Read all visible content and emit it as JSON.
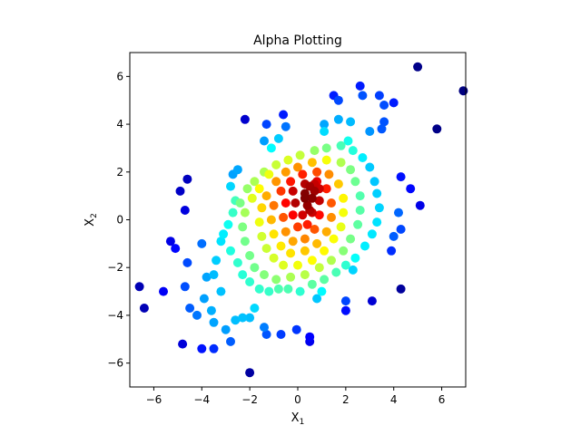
{
  "chart_data": {
    "type": "scatter",
    "title": "Alpha Plotting",
    "xlabel": {
      "base": "X",
      "sub": "1"
    },
    "ylabel": {
      "base": "X",
      "sub": "2"
    },
    "xlim": [
      -7,
      7
    ],
    "ylim": [
      -7,
      7
    ],
    "xticks": [
      -6,
      -4,
      -2,
      0,
      2,
      4,
      6
    ],
    "yticks": [
      -6,
      -4,
      -2,
      0,
      2,
      4,
      6
    ],
    "grid": false,
    "colormap": "jet",
    "color_meaning": "point density (red = dense center, dark blue = sparse outliers)",
    "points": [
      [
        -6.6,
        -2.8
      ],
      [
        -6.4,
        -3.7
      ],
      [
        -5.6,
        -3.0
      ],
      [
        -5.3,
        -0.9
      ],
      [
        -5.1,
        -1.2
      ],
      [
        -4.9,
        1.2
      ],
      [
        -4.7,
        0.4
      ],
      [
        -4.6,
        1.7
      ],
      [
        -4.6,
        -1.8
      ],
      [
        -4.7,
        -2.8
      ],
      [
        -4.8,
        -5.2
      ],
      [
        -4.5,
        -3.7
      ],
      [
        -4.2,
        -4.0
      ],
      [
        -4.0,
        -5.4
      ],
      [
        -3.5,
        -5.4
      ],
      [
        -4.0,
        -1.0
      ],
      [
        -3.8,
        -2.4
      ],
      [
        -3.9,
        -3.3
      ],
      [
        -3.6,
        -3.8
      ],
      [
        -3.5,
        -4.3
      ],
      [
        -3.2,
        -3.0
      ],
      [
        -3.0,
        -4.6
      ],
      [
        -2.8,
        -5.1
      ],
      [
        -2.6,
        -4.2
      ],
      [
        -2.3,
        -4.1
      ],
      [
        -2.0,
        -4.1
      ],
      [
        -1.8,
        -3.7
      ],
      [
        -1.4,
        -4.5
      ],
      [
        -1.3,
        -4.8
      ],
      [
        -0.7,
        -4.8
      ],
      [
        -0.05,
        -4.6
      ],
      [
        0.5,
        -4.9
      ],
      [
        0.5,
        -5.1
      ],
      [
        -2.0,
        -6.4
      ],
      [
        -2.2,
        4.2
      ],
      [
        -1.3,
        4.0
      ],
      [
        -1.4,
        3.3
      ],
      [
        -0.6,
        4.4
      ],
      [
        -0.5,
        3.9
      ],
      [
        -0.8,
        3.4
      ],
      [
        -1.1,
        3.0
      ],
      [
        -2.5,
        2.1
      ],
      [
        -2.7,
        1.9
      ],
      [
        -2.8,
        1.4
      ],
      [
        -2.6,
        0.8
      ],
      [
        -3.2,
        -0.9
      ],
      [
        -3.4,
        -1.7
      ],
      [
        -3.5,
        -2.3
      ],
      [
        1.5,
        5.2
      ],
      [
        1.7,
        5.0
      ],
      [
        2.6,
        5.6
      ],
      [
        2.7,
        5.2
      ],
      [
        3.4,
        5.2
      ],
      [
        3.6,
        4.8
      ],
      [
        4.0,
        4.9
      ],
      [
        5.0,
        6.4
      ],
      [
        6.9,
        5.4
      ],
      [
        5.8,
        3.8
      ],
      [
        4.7,
        1.3
      ],
      [
        5.1,
        0.6
      ],
      [
        4.3,
        1.8
      ],
      [
        4.2,
        0.3
      ],
      [
        4.3,
        -0.4
      ],
      [
        4.0,
        -0.7
      ],
      [
        3.9,
        -1.3
      ],
      [
        4.3,
        -2.9
      ],
      [
        3.1,
        -3.4
      ],
      [
        2.0,
        -3.4
      ],
      [
        2.0,
        -3.8
      ],
      [
        1.0,
        -3.0
      ],
      [
        0.8,
        -3.3
      ],
      [
        2.3,
        -2.1
      ],
      [
        3.6,
        4.1
      ],
      [
        3.5,
        3.8
      ],
      [
        3.0,
        3.7
      ],
      [
        2.2,
        4.1
      ],
      [
        1.7,
        4.2
      ],
      [
        1.1,
        4.0
      ],
      [
        1.1,
        3.7
      ],
      [
        2.1,
        3.3
      ],
      [
        -1.4,
        2.0
      ],
      [
        -1.8,
        1.6
      ],
      [
        -2.1,
        1.3
      ],
      [
        -2.4,
        0.7
      ],
      [
        -2.7,
        0.3
      ],
      [
        -2.9,
        -0.2
      ],
      [
        -3.1,
        -0.6
      ],
      [
        -2.8,
        -1.3
      ],
      [
        -2.5,
        -1.8
      ],
      [
        -2.3,
        -2.3
      ],
      [
        -2.0,
        -2.6
      ],
      [
        -1.6,
        -2.9
      ],
      [
        -1.2,
        -3.0
      ],
      [
        -0.8,
        -2.9
      ],
      [
        -0.4,
        -2.9
      ],
      [
        0.1,
        -3.0
      ],
      [
        0.6,
        -2.7
      ],
      [
        1.1,
        -2.5
      ],
      [
        1.6,
        -2.2
      ],
      [
        2.0,
        -1.9
      ],
      [
        2.4,
        -1.6
      ],
      [
        2.8,
        -1.1
      ],
      [
        3.1,
        -0.6
      ],
      [
        3.3,
        -0.1
      ],
      [
        3.4,
        0.5
      ],
      [
        3.3,
        1.1
      ],
      [
        3.2,
        1.6
      ],
      [
        3.0,
        2.2
      ],
      [
        2.7,
        2.6
      ],
      [
        2.3,
        2.9
      ],
      [
        1.8,
        3.1
      ],
      [
        1.2,
        3.0
      ],
      [
        0.7,
        2.9
      ],
      [
        0.1,
        2.7
      ],
      [
        -0.4,
        2.5
      ],
      [
        -0.9,
        2.3
      ],
      [
        -1.2,
        1.9
      ],
      [
        -1.6,
        1.3
      ],
      [
        -1.9,
        0.9
      ],
      [
        -2.2,
        0.3
      ],
      [
        -2.3,
        -0.3
      ],
      [
        -2.2,
        -0.9
      ],
      [
        -2.0,
        -1.5
      ],
      [
        -1.8,
        -2.0
      ],
      [
        -1.4,
        -2.3
      ],
      [
        -0.9,
        -2.5
      ],
      [
        -0.3,
        -2.4
      ],
      [
        0.3,
        -2.3
      ],
      [
        0.9,
        -2.0
      ],
      [
        1.4,
        -1.7
      ],
      [
        1.9,
        -1.3
      ],
      [
        2.2,
        -0.8
      ],
      [
        2.5,
        -0.2
      ],
      [
        2.6,
        0.4
      ],
      [
        2.6,
        1.0
      ],
      [
        2.4,
        1.6
      ],
      [
        2.2,
        2.1
      ],
      [
        1.8,
        2.4
      ],
      [
        1.2,
        2.5
      ],
      [
        0.6,
        2.4
      ],
      [
        0.0,
        2.2
      ],
      [
        -0.5,
        2.0
      ],
      [
        -0.9,
        1.6
      ],
      [
        -1.3,
        1.0
      ],
      [
        -1.5,
        0.5
      ],
      [
        -1.6,
        -0.1
      ],
      [
        -1.5,
        -0.7
      ],
      [
        -1.3,
        -1.2
      ],
      [
        -1.0,
        -1.6
      ],
      [
        -0.6,
        -1.9
      ],
      [
        0.0,
        -1.9
      ],
      [
        0.6,
        -1.7
      ],
      [
        1.1,
        -1.3
      ],
      [
        1.5,
        -0.8
      ],
      [
        1.8,
        -0.3
      ],
      [
        1.9,
        0.3
      ],
      [
        1.9,
        0.9
      ],
      [
        1.7,
        1.5
      ],
      [
        1.3,
        1.9
      ],
      [
        0.8,
        2.0
      ],
      [
        0.2,
        1.9
      ],
      [
        -0.3,
        1.6
      ],
      [
        -0.7,
        1.2
      ],
      [
        -1.0,
        0.6
      ],
      [
        -1.1,
        0.0
      ],
      [
        -1.0,
        -0.6
      ],
      [
        -0.7,
        -1.1
      ],
      [
        -0.3,
        -1.4
      ],
      [
        0.3,
        -1.3
      ],
      [
        0.8,
        -1.0
      ],
      [
        1.2,
        -0.5
      ],
      [
        1.4,
        0.1
      ],
      [
        1.4,
        0.7
      ],
      [
        1.2,
        1.3
      ],
      [
        0.8,
        1.6
      ],
      [
        0.3,
        1.5
      ],
      [
        -0.2,
        1.2
      ],
      [
        -0.5,
        0.7
      ],
      [
        -0.6,
        0.1
      ],
      [
        -0.5,
        -0.5
      ],
      [
        -0.2,
        -0.9
      ],
      [
        0.3,
        -0.8
      ],
      [
        0.7,
        -0.4
      ],
      [
        0.9,
        0.2
      ],
      [
        0.9,
        0.8
      ],
      [
        0.7,
        1.2
      ],
      [
        0.3,
        1.1
      ],
      [
        -0.1,
        0.7
      ],
      [
        -0.2,
        0.2
      ],
      [
        0.0,
        -0.3
      ],
      [
        0.4,
        -0.2
      ],
      [
        0.6,
        0.3
      ],
      [
        0.6,
        0.9
      ],
      [
        0.4,
        0.6
      ],
      [
        0.2,
        0.2
      ],
      [
        0.5,
        1.4
      ],
      [
        0.7,
        1.5
      ],
      [
        0.9,
        1.3
      ],
      [
        0.3,
        0.9
      ],
      [
        0.5,
        0.4
      ]
    ]
  }
}
